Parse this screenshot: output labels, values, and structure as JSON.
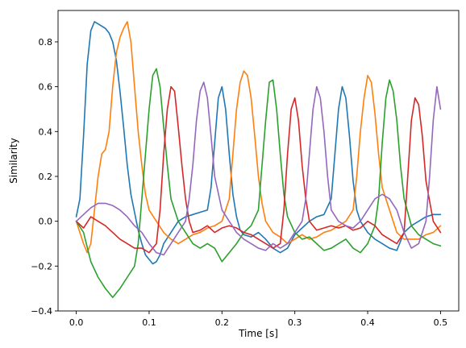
{
  "chart_data": {
    "type": "line",
    "xlabel": "Time [s]",
    "ylabel": "Similarity",
    "xlim": [
      -0.025,
      0.525
    ],
    "ylim": [
      -0.4,
      0.94
    ],
    "xticks": [
      0.0,
      0.1,
      0.2,
      0.3,
      0.4,
      0.5
    ],
    "xtick_labels": [
      "0.0",
      "0.1",
      "0.2",
      "0.3",
      "0.4",
      "0.5"
    ],
    "yticks": [
      -0.4,
      -0.2,
      0.0,
      0.2,
      0.4,
      0.6,
      0.8
    ],
    "ytick_labels": [
      "−0.4",
      "−0.2",
      "0.0",
      "0.2",
      "0.4",
      "0.6",
      "0.8"
    ],
    "grid": false,
    "legend": "none",
    "series": [
      {
        "color": "#1f77b4",
        "x": [
          0,
          0.005,
          0.01,
          0.015,
          0.02,
          0.025,
          0.03,
          0.035,
          0.04,
          0.045,
          0.05,
          0.055,
          0.06,
          0.065,
          0.07,
          0.075,
          0.08,
          0.085,
          0.09,
          0.095,
          0.1,
          0.105,
          0.11,
          0.115,
          0.12,
          0.13,
          0.14,
          0.15,
          0.16,
          0.17,
          0.18,
          0.185,
          0.19,
          0.195,
          0.2,
          0.205,
          0.21,
          0.215,
          0.22,
          0.225,
          0.23,
          0.24,
          0.25,
          0.26,
          0.27,
          0.28,
          0.29,
          0.3,
          0.31,
          0.32,
          0.33,
          0.34,
          0.35,
          0.355,
          0.36,
          0.365,
          0.37,
          0.375,
          0.38,
          0.385,
          0.39,
          0.4,
          0.41,
          0.42,
          0.43,
          0.44,
          0.45,
          0.46,
          0.47,
          0.48,
          0.49,
          0.5
        ],
        "y": [
          0.02,
          0.1,
          0.38,
          0.7,
          0.85,
          0.89,
          0.88,
          0.87,
          0.86,
          0.84,
          0.8,
          0.72,
          0.58,
          0.42,
          0.25,
          0.12,
          0.04,
          -0.04,
          -0.1,
          -0.15,
          -0.17,
          -0.19,
          -0.18,
          -0.15,
          -0.1,
          -0.05,
          0.0,
          0.02,
          0.03,
          0.04,
          0.05,
          0.15,
          0.35,
          0.55,
          0.6,
          0.5,
          0.3,
          0.12,
          0.02,
          -0.04,
          -0.06,
          -0.07,
          -0.05,
          -0.08,
          -0.12,
          -0.14,
          -0.12,
          -0.06,
          -0.03,
          0.0,
          0.02,
          0.03,
          0.1,
          0.3,
          0.5,
          0.6,
          0.55,
          0.38,
          0.18,
          0.05,
          0.0,
          -0.05,
          -0.08,
          -0.1,
          -0.12,
          -0.13,
          -0.05,
          -0.02,
          0.0,
          0.02,
          0.03,
          0.03
        ]
      },
      {
        "color": "#ff7f0e",
        "x": [
          0,
          0.005,
          0.01,
          0.015,
          0.02,
          0.025,
          0.03,
          0.035,
          0.04,
          0.045,
          0.05,
          0.055,
          0.06,
          0.065,
          0.07,
          0.075,
          0.08,
          0.085,
          0.09,
          0.095,
          0.1,
          0.11,
          0.12,
          0.13,
          0.14,
          0.15,
          0.16,
          0.17,
          0.18,
          0.19,
          0.2,
          0.21,
          0.215,
          0.22,
          0.225,
          0.23,
          0.235,
          0.24,
          0.245,
          0.25,
          0.255,
          0.26,
          0.27,
          0.28,
          0.29,
          0.3,
          0.31,
          0.32,
          0.33,
          0.34,
          0.35,
          0.36,
          0.37,
          0.38,
          0.385,
          0.39,
          0.395,
          0.4,
          0.405,
          0.41,
          0.415,
          0.42,
          0.43,
          0.44,
          0.45,
          0.46,
          0.47,
          0.48,
          0.49,
          0.5
        ],
        "y": [
          0.0,
          -0.05,
          -0.1,
          -0.14,
          -0.1,
          0.05,
          0.2,
          0.3,
          0.32,
          0.4,
          0.6,
          0.75,
          0.82,
          0.86,
          0.89,
          0.8,
          0.6,
          0.4,
          0.25,
          0.12,
          0.05,
          0.0,
          -0.05,
          -0.08,
          -0.1,
          -0.08,
          -0.06,
          -0.05,
          -0.03,
          -0.02,
          0.0,
          0.1,
          0.3,
          0.5,
          0.62,
          0.67,
          0.65,
          0.55,
          0.38,
          0.2,
          0.08,
          0.0,
          -0.05,
          -0.07,
          -0.1,
          -0.08,
          -0.06,
          -0.08,
          -0.07,
          -0.05,
          -0.04,
          -0.02,
          0.0,
          0.05,
          0.2,
          0.4,
          0.55,
          0.65,
          0.62,
          0.48,
          0.3,
          0.15,
          0.05,
          -0.05,
          -0.08,
          -0.08,
          -0.08,
          -0.06,
          -0.05,
          -0.02
        ]
      },
      {
        "color": "#2ca02c",
        "x": [
          0,
          0.01,
          0.02,
          0.03,
          0.04,
          0.05,
          0.06,
          0.07,
          0.08,
          0.085,
          0.09,
          0.095,
          0.1,
          0.105,
          0.11,
          0.115,
          0.12,
          0.125,
          0.13,
          0.14,
          0.15,
          0.16,
          0.17,
          0.18,
          0.19,
          0.2,
          0.21,
          0.22,
          0.23,
          0.24,
          0.25,
          0.255,
          0.26,
          0.265,
          0.27,
          0.275,
          0.28,
          0.285,
          0.29,
          0.3,
          0.31,
          0.32,
          0.33,
          0.34,
          0.35,
          0.36,
          0.37,
          0.38,
          0.39,
          0.4,
          0.41,
          0.415,
          0.42,
          0.425,
          0.43,
          0.435,
          0.44,
          0.445,
          0.45,
          0.46,
          0.47,
          0.48,
          0.49,
          0.5
        ],
        "y": [
          0.0,
          -0.05,
          -0.18,
          -0.25,
          -0.3,
          -0.34,
          -0.3,
          -0.25,
          -0.2,
          -0.1,
          0.1,
          0.3,
          0.5,
          0.65,
          0.68,
          0.6,
          0.42,
          0.25,
          0.1,
          0.0,
          -0.05,
          -0.1,
          -0.12,
          -0.1,
          -0.12,
          -0.18,
          -0.14,
          -0.1,
          -0.05,
          -0.02,
          0.05,
          0.25,
          0.45,
          0.62,
          0.63,
          0.5,
          0.3,
          0.12,
          0.02,
          -0.05,
          -0.08,
          -0.07,
          -0.1,
          -0.13,
          -0.12,
          -0.1,
          -0.08,
          -0.12,
          -0.14,
          -0.1,
          -0.02,
          0.1,
          0.35,
          0.55,
          0.63,
          0.58,
          0.45,
          0.25,
          0.1,
          -0.02,
          -0.06,
          -0.08,
          -0.1,
          -0.11
        ]
      },
      {
        "color": "#d62728",
        "x": [
          0,
          0.01,
          0.02,
          0.03,
          0.04,
          0.05,
          0.06,
          0.07,
          0.08,
          0.09,
          0.1,
          0.11,
          0.115,
          0.12,
          0.125,
          0.13,
          0.135,
          0.14,
          0.145,
          0.15,
          0.155,
          0.16,
          0.17,
          0.18,
          0.19,
          0.2,
          0.21,
          0.22,
          0.23,
          0.24,
          0.25,
          0.26,
          0.27,
          0.28,
          0.285,
          0.29,
          0.295,
          0.3,
          0.305,
          0.31,
          0.315,
          0.32,
          0.33,
          0.34,
          0.35,
          0.36,
          0.37,
          0.38,
          0.39,
          0.4,
          0.41,
          0.42,
          0.43,
          0.44,
          0.45,
          0.455,
          0.46,
          0.465,
          0.47,
          0.475,
          0.48,
          0.49,
          0.5
        ],
        "y": [
          0.0,
          -0.03,
          0.02,
          0.0,
          -0.02,
          -0.05,
          -0.08,
          -0.1,
          -0.12,
          -0.12,
          -0.14,
          -0.1,
          0.05,
          0.3,
          0.5,
          0.6,
          0.58,
          0.42,
          0.25,
          0.1,
          0.0,
          -0.05,
          -0.04,
          -0.02,
          -0.05,
          -0.03,
          -0.02,
          -0.03,
          -0.05,
          -0.06,
          -0.08,
          -0.1,
          -0.12,
          -0.1,
          0.05,
          0.3,
          0.5,
          0.55,
          0.45,
          0.25,
          0.1,
          0.0,
          -0.04,
          -0.03,
          -0.02,
          -0.03,
          -0.02,
          -0.04,
          -0.03,
          0.0,
          -0.02,
          -0.06,
          -0.08,
          -0.1,
          -0.05,
          0.2,
          0.45,
          0.55,
          0.52,
          0.38,
          0.18,
          0.0,
          -0.05
        ]
      },
      {
        "color": "#9467bd",
        "x": [
          0,
          0.01,
          0.02,
          0.03,
          0.04,
          0.05,
          0.06,
          0.07,
          0.08,
          0.09,
          0.1,
          0.11,
          0.12,
          0.13,
          0.14,
          0.15,
          0.155,
          0.16,
          0.165,
          0.17,
          0.175,
          0.18,
          0.185,
          0.19,
          0.2,
          0.21,
          0.22,
          0.23,
          0.24,
          0.25,
          0.26,
          0.27,
          0.28,
          0.29,
          0.3,
          0.31,
          0.315,
          0.32,
          0.325,
          0.33,
          0.335,
          0.34,
          0.345,
          0.35,
          0.36,
          0.37,
          0.38,
          0.39,
          0.4,
          0.41,
          0.42,
          0.43,
          0.44,
          0.45,
          0.46,
          0.47,
          0.48,
          0.485,
          0.49,
          0.495,
          0.5
        ],
        "y": [
          0.0,
          0.03,
          0.06,
          0.08,
          0.08,
          0.07,
          0.05,
          0.02,
          -0.02,
          -0.05,
          -0.1,
          -0.14,
          -0.15,
          -0.1,
          -0.05,
          0.0,
          0.1,
          0.25,
          0.45,
          0.58,
          0.62,
          0.55,
          0.38,
          0.2,
          0.05,
          0.0,
          -0.05,
          -0.08,
          -0.1,
          -0.12,
          -0.13,
          -0.1,
          -0.12,
          -0.1,
          -0.05,
          0.0,
          0.1,
          0.3,
          0.5,
          0.6,
          0.55,
          0.4,
          0.2,
          0.05,
          0.0,
          -0.02,
          -0.03,
          0.0,
          0.05,
          0.1,
          0.12,
          0.1,
          0.05,
          -0.05,
          -0.12,
          -0.1,
          0.0,
          0.2,
          0.45,
          0.6,
          0.5
        ]
      }
    ]
  }
}
